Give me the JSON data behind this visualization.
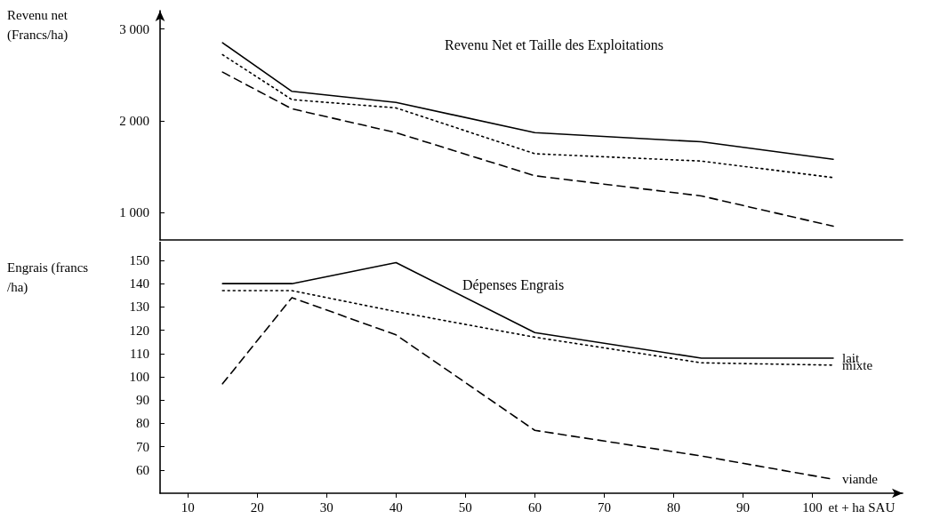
{
  "chart_data": [
    {
      "type": "line",
      "title": "Revenu Net et Taille des Exploitations",
      "ylabel": "Revenu net (Francs/ha)",
      "x": [
        15,
        25,
        40,
        60,
        84,
        103
      ],
      "xlim": [
        6,
        113
      ],
      "xticks": [
        10,
        20,
        30,
        40,
        50,
        60,
        70,
        80,
        90,
        100
      ],
      "ylim": [
        700,
        3200
      ],
      "yticks": [
        {
          "value": 1000,
          "label": "1 000"
        },
        {
          "value": 2000,
          "label": "2 000"
        },
        {
          "value": 3000,
          "label": "3 000"
        }
      ],
      "tick_labels": "y",
      "grid": false,
      "legend": false,
      "marker": "none",
      "series": [
        {
          "color": "#000000",
          "line_style": "solid",
          "values": [
            2850,
            2320,
            2200,
            1870,
            1770,
            1580
          ]
        },
        {
          "color": "#000000",
          "line_style": "dotted",
          "values": [
            2720,
            2230,
            2140,
            1640,
            1560,
            1380
          ]
        },
        {
          "color": "#000000",
          "line_style": "dashed",
          "values": [
            2530,
            2130,
            1870,
            1400,
            1180,
            850
          ]
        }
      ]
    },
    {
      "type": "line",
      "title": "Dépenses Engrais",
      "ylabel": "Engrais (francs/ha)",
      "xlabel": "et + ha SAU",
      "x": [
        15,
        25,
        40,
        60,
        84,
        103
      ],
      "xlim": [
        6,
        113
      ],
      "xticks": [
        10,
        20,
        30,
        40,
        50,
        60,
        70,
        80,
        90,
        100
      ],
      "ylim": [
        50,
        158
      ],
      "yticks": [
        60,
        70,
        80,
        90,
        100,
        110,
        120,
        130,
        140,
        150
      ],
      "grid": false,
      "legend": false,
      "marker": "none",
      "series": [
        {
          "name": "lait",
          "color": "#000000",
          "line_style": "solid",
          "values": [
            140,
            140,
            149,
            119,
            108,
            108
          ]
        },
        {
          "name": "mixte",
          "color": "#000000",
          "line_style": "dotted",
          "values": [
            137,
            137,
            128,
            117,
            106,
            105
          ]
        },
        {
          "name": "viande",
          "color": "#000000",
          "line_style": "dashed",
          "values": [
            97,
            134,
            118,
            77,
            66,
            56
          ]
        }
      ]
    }
  ]
}
